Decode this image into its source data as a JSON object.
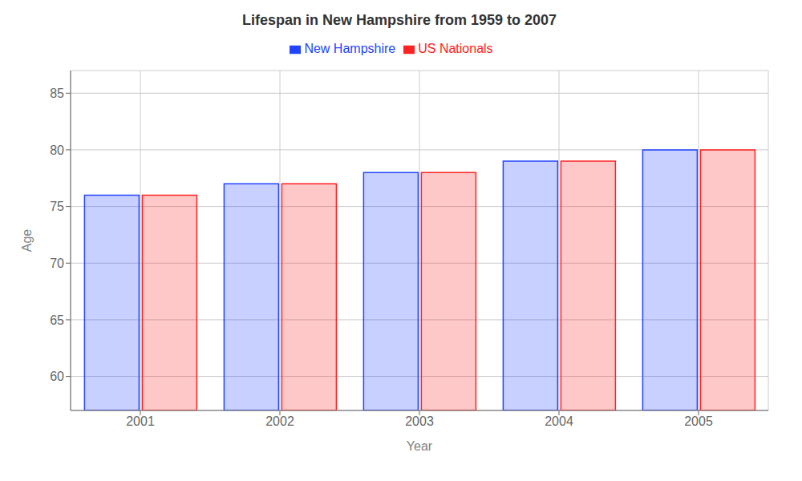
{
  "chart_data": {
    "type": "bar",
    "title": "Lifespan in New Hampshire from 1959 to 2007",
    "xlabel": "Year",
    "ylabel": "Age",
    "categories": [
      "2001",
      "2002",
      "2003",
      "2004",
      "2005"
    ],
    "series": [
      {
        "name": "New Hampshire",
        "color": "#2244ff",
        "values": [
          76,
          77,
          78,
          79,
          80
        ]
      },
      {
        "name": "US Nationals",
        "color": "#ff2222",
        "values": [
          76,
          77,
          78,
          79,
          80
        ]
      }
    ],
    "ylim": [
      57,
      87
    ],
    "yticks": [
      60,
      65,
      70,
      75,
      80,
      85
    ],
    "grid": true,
    "legend": "top"
  }
}
